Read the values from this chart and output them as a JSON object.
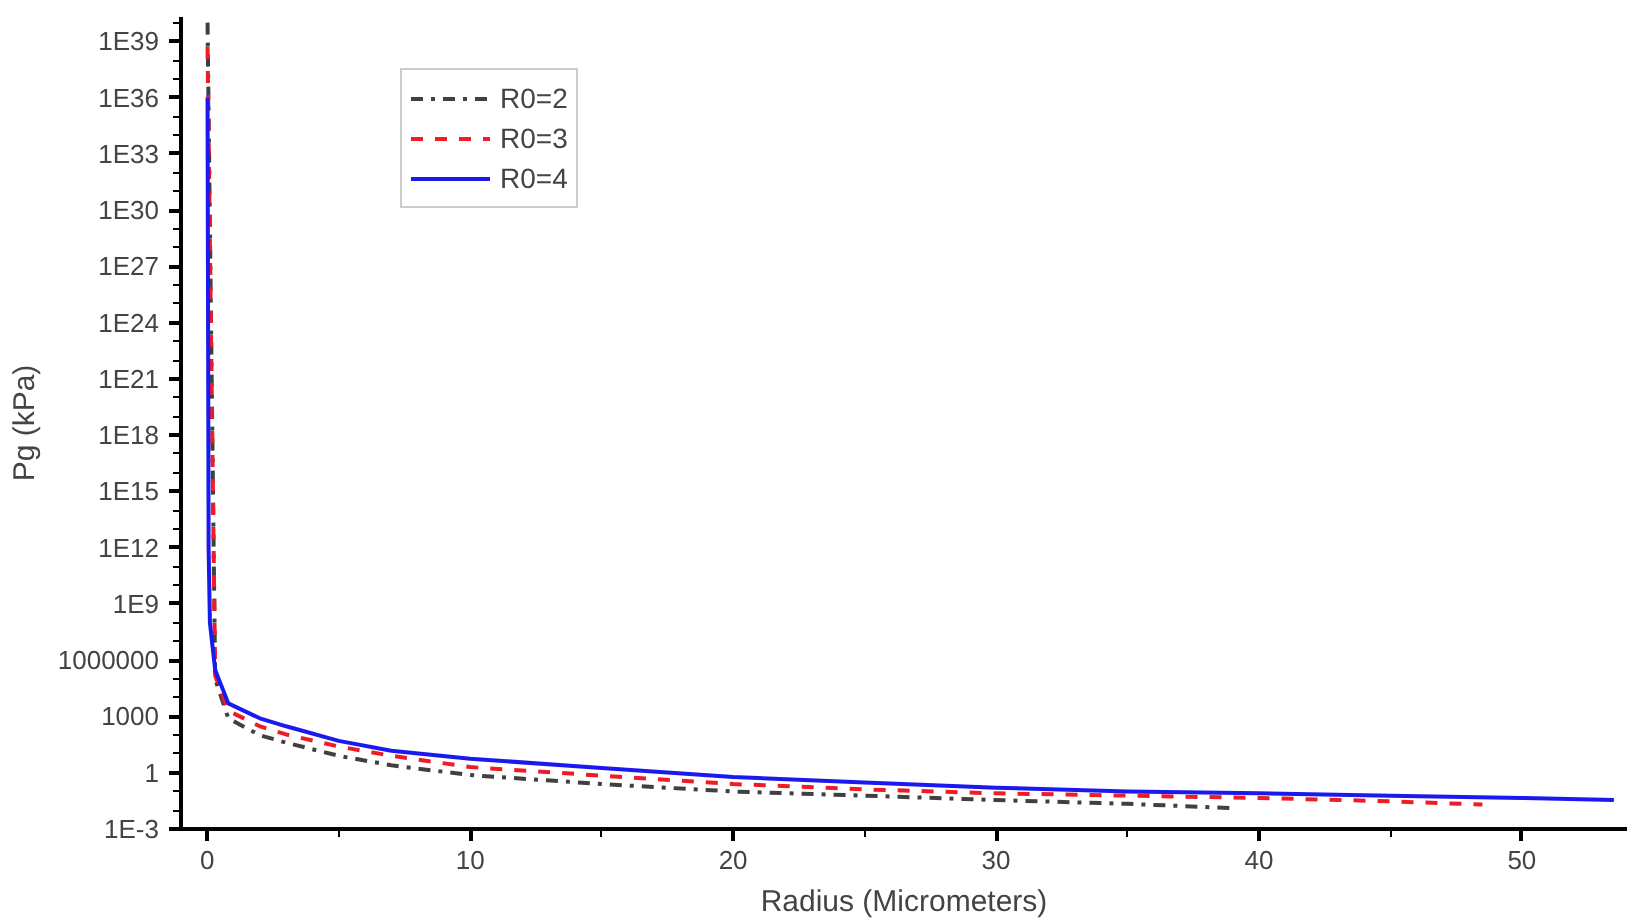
{
  "chart_data": {
    "type": "line",
    "xlabel": "Radius (Micrometers)",
    "ylabel": "Pg (kPa)",
    "log": "y",
    "grid": false,
    "legend": "top left",
    "marker": "none",
    "xlim": [
      -1,
      54
    ],
    "xticks": [
      0,
      10,
      20,
      30,
      40,
      50
    ],
    "ylim": [
      0.001,
      2e+40
    ],
    "yticks": [
      {
        "value": 0.001,
        "label": "1E-3"
      },
      1,
      1000,
      1000000,
      {
        "value": 1000000000.0,
        "label": "1E9"
      },
      {
        "value": 1000000000000.0,
        "label": "1E12"
      },
      {
        "value": 1000000000000000.0,
        "label": "1E15"
      },
      {
        "value": 1e+18,
        "label": "1E18"
      },
      {
        "value": 1e+21,
        "label": "1E21"
      },
      {
        "value": 1e+24,
        "label": "1E24"
      },
      {
        "value": 1e+27,
        "label": "1E27"
      },
      {
        "value": 1e+30,
        "label": "1E30"
      },
      {
        "value": 1e+33,
        "label": "1E33"
      },
      {
        "value": 1e+36,
        "label": "1E36"
      },
      {
        "value": 1e+39,
        "label": "1E39"
      }
    ],
    "series": [
      {
        "name": "R0=2",
        "color": "#404040",
        "line_style": "dashdot",
        "x": [
          0.01,
          0.3,
          0.8,
          2,
          3,
          5,
          7,
          10,
          15,
          20,
          25,
          30,
          35,
          39
        ],
        "values": [
          1e+40,
          100000.0,
          800,
          100,
          40,
          8,
          2.5,
          0.75,
          0.25,
          0.1,
          0.06,
          0.035,
          0.022,
          0.013
        ]
      },
      {
        "name": "R0=3",
        "color": "#ee1c25",
        "line_style": "dashed",
        "x": [
          0.01,
          0.3,
          0.8,
          2,
          3,
          5,
          7,
          10,
          15,
          20,
          25,
          30,
          35,
          40,
          45,
          48.5
        ],
        "values": [
          5e+38,
          150000,
          2000,
          300,
          110,
          25,
          8,
          2,
          0.7,
          0.25,
          0.13,
          0.08,
          0.06,
          0.045,
          0.03,
          0.02
        ]
      },
      {
        "name": "R0=4",
        "color": "#1a1aee",
        "line_style": "solid",
        "x": [
          0.01,
          0.05,
          0.1,
          0.3,
          0.8,
          2,
          3,
          5,
          7,
          10,
          15,
          20,
          25,
          30,
          35,
          40,
          45,
          50,
          53.5
        ],
        "values": [
          1e+36,
          1000000000000.0,
          100000000.0,
          300000,
          5000,
          800,
          300,
          50,
          15,
          5.6,
          1.8,
          0.6,
          0.3,
          0.16,
          0.1,
          0.08,
          0.06,
          0.045,
          0.035
        ]
      }
    ]
  }
}
